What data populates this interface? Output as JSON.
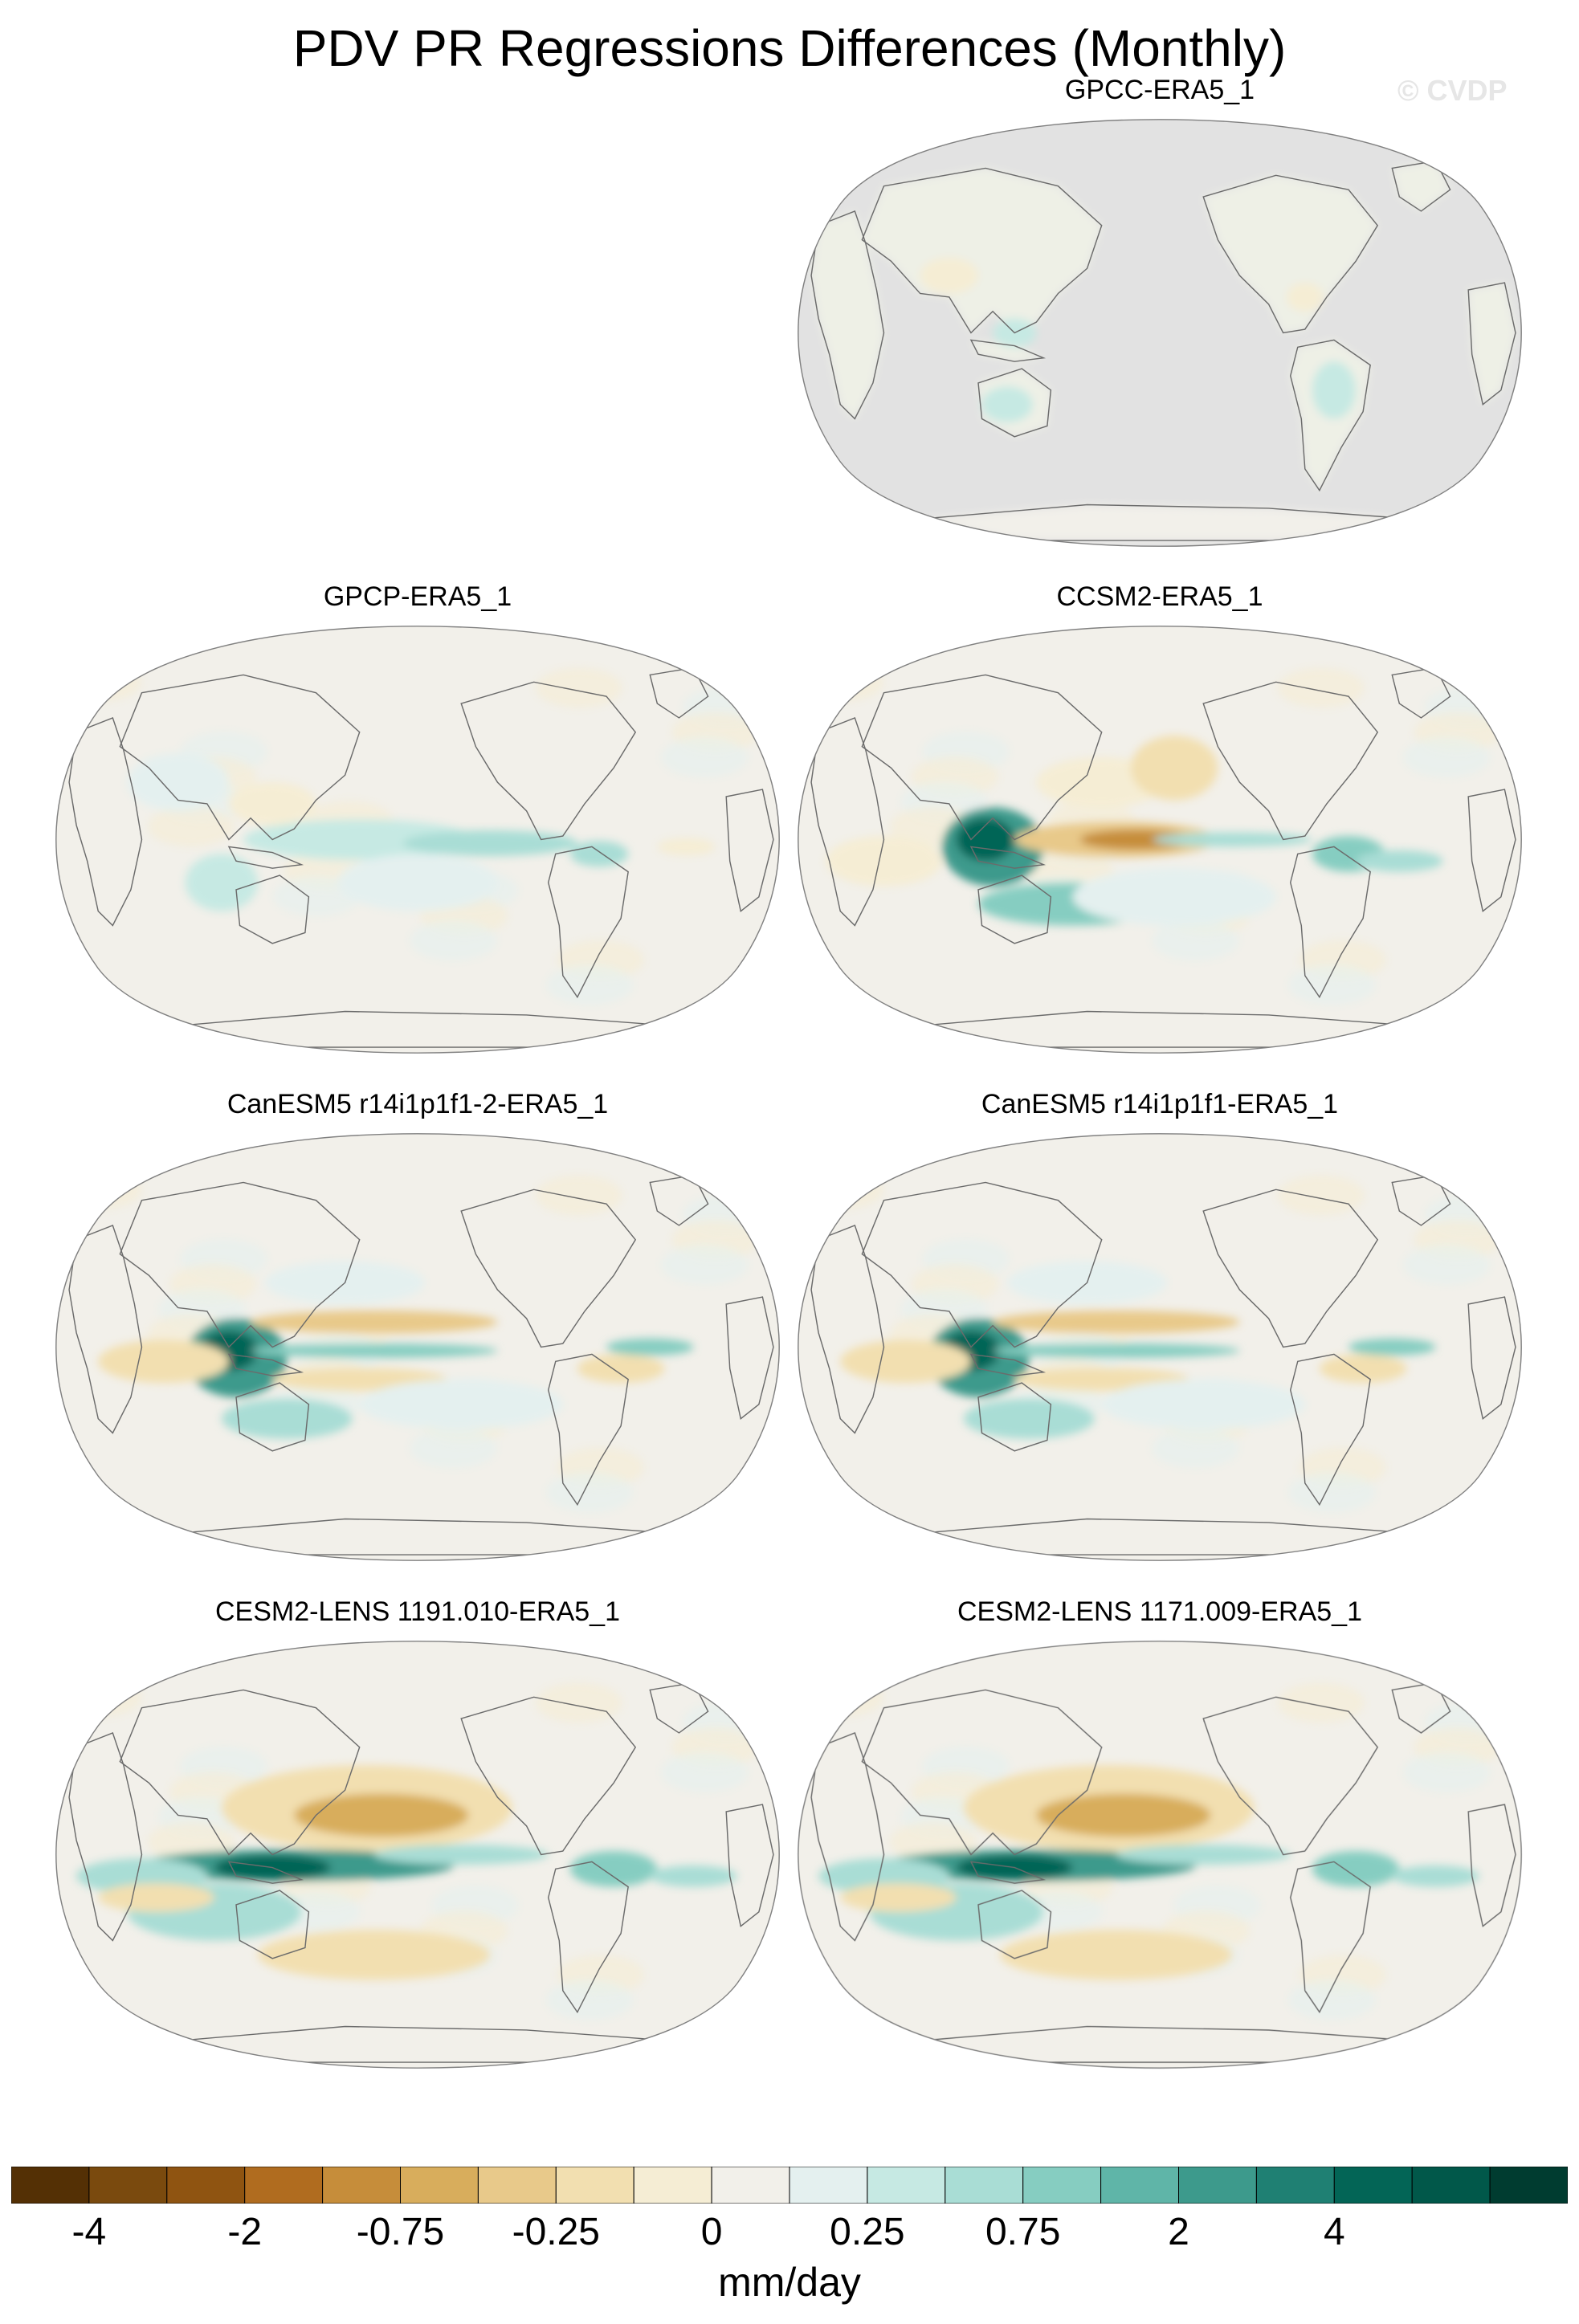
{
  "title": "PDV PR Regressions Differences (Monthly)",
  "watermark": "© CVDP",
  "chart_data": {
    "type": "heatmap",
    "title": "PDV PR Regressions Differences (Monthly)",
    "projection": "Robinson-like global map centered on the Pacific",
    "units": "mm/day",
    "colorbar": {
      "levels": [
        -4,
        -3,
        -2,
        -1,
        -0.75,
        -0.5,
        -0.25,
        -0.1,
        0,
        0.1,
        0.25,
        0.5,
        0.75,
        1,
        2,
        3,
        4
      ],
      "tick_labels": [
        "-4",
        "-2",
        "-0.75",
        "-0.25",
        "0",
        "0.25",
        "0.75",
        "2",
        "4"
      ],
      "tick_values": [
        -4,
        -2,
        -0.75,
        -0.25,
        0,
        0.25,
        0.75,
        2,
        4
      ],
      "colors": [
        "#543005",
        "#7a4a0e",
        "#8f5411",
        "#b06c1f",
        "#c68d3a",
        "#d8ad5c",
        "#e8c98a",
        "#f2dfb0",
        "#f5edd4",
        "#f2f0ea",
        "#e4f0ef",
        "#c6e9e3",
        "#a9ddd5",
        "#86cdc1",
        "#5fb5a8",
        "#3d9a8c",
        "#1f8073",
        "#036556",
        "#01584a",
        "#003c30"
      ]
    },
    "panels": [
      {
        "name": "GPCC-ERA5_1",
        "ocean_masked": true,
        "pattern": "weak"
      },
      {
        "name": "GPCP-ERA5_1",
        "ocean_masked": false,
        "pattern": "weak"
      },
      {
        "name": "CCSM2-ERA5_1",
        "ocean_masked": false,
        "pattern": "strong-warm-pool"
      },
      {
        "name": "CanESM5 r14i1p1f1-2-ERA5_1",
        "ocean_masked": false,
        "pattern": "strong-band"
      },
      {
        "name": "CanESM5 r14i1p1f1-ERA5_1",
        "ocean_masked": false,
        "pattern": "strong-band"
      },
      {
        "name": "CESM2-LENS 1191.010-ERA5_1",
        "ocean_masked": false,
        "pattern": "wide-band"
      },
      {
        "name": "CESM2-LENS 1171.009-ERA5_1",
        "ocean_masked": false,
        "pattern": "wide-band"
      }
    ]
  }
}
